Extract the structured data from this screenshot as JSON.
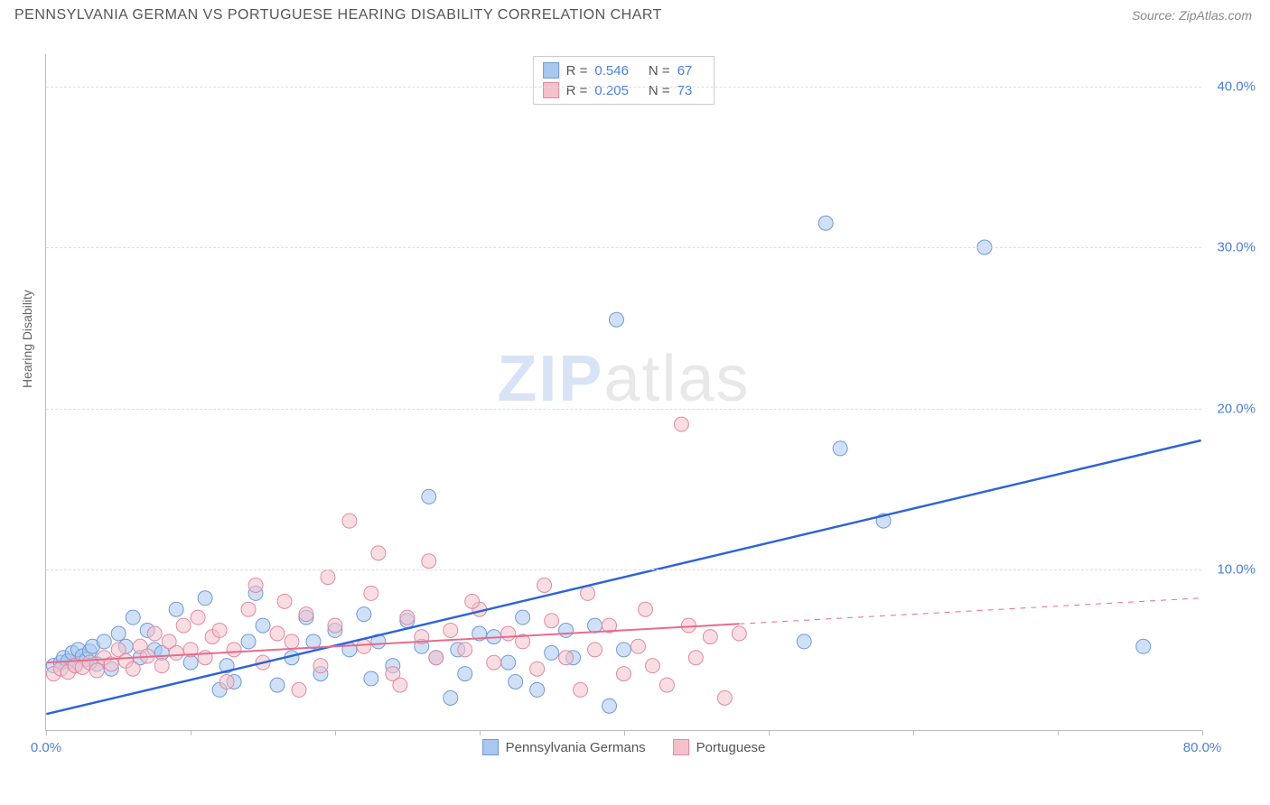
{
  "title": "PENNSYLVANIA GERMAN VS PORTUGUESE HEARING DISABILITY CORRELATION CHART",
  "source_label": "Source: ZipAtlas.com",
  "ylabel": "Hearing Disability",
  "watermark": {
    "zip": "ZIP",
    "atlas": "atlas"
  },
  "chart": {
    "type": "scatter",
    "xlim": [
      0,
      80
    ],
    "ylim": [
      0,
      42
    ],
    "x_tick_step": 10,
    "x_tick_labels": {
      "0": "0.0%",
      "80": "80.0%"
    },
    "y_ticks": [
      10,
      20,
      30,
      40
    ],
    "y_tick_labels": [
      "10.0%",
      "20.0%",
      "30.0%",
      "40.0%"
    ],
    "grid_color": "#dddddd",
    "axis_color": "#bbbbbb",
    "background_color": "#ffffff",
    "marker_radius": 8,
    "marker_opacity": 0.55,
    "series": [
      {
        "name": "Pennsylvania Germans",
        "color_fill": "#a9c7ef",
        "color_stroke": "#6f9ad8",
        "r_value": "0.546",
        "n_value": "67",
        "trend": {
          "x1": 0,
          "y1": 1.0,
          "x2": 80,
          "y2": 18.0,
          "solid_until_x": 80,
          "stroke": "#2e63d6",
          "width": 2.5
        },
        "points": [
          [
            0.5,
            4.0
          ],
          [
            1.0,
            4.2
          ],
          [
            1.2,
            4.5
          ],
          [
            1.5,
            4.3
          ],
          [
            1.8,
            4.8
          ],
          [
            2.0,
            4.0
          ],
          [
            2.2,
            5.0
          ],
          [
            2.5,
            4.6
          ],
          [
            2.8,
            4.4
          ],
          [
            3.0,
            4.9
          ],
          [
            3.2,
            5.2
          ],
          [
            3.5,
            4.1
          ],
          [
            4.0,
            5.5
          ],
          [
            4.5,
            3.8
          ],
          [
            5.0,
            6.0
          ],
          [
            5.5,
            5.2
          ],
          [
            6.0,
            7.0
          ],
          [
            6.5,
            4.5
          ],
          [
            7.0,
            6.2
          ],
          [
            7.5,
            5.0
          ],
          [
            8.0,
            4.8
          ],
          [
            9.0,
            7.5
          ],
          [
            10.0,
            4.2
          ],
          [
            11.0,
            8.2
          ],
          [
            12.0,
            2.5
          ],
          [
            13.0,
            3.0
          ],
          [
            14.0,
            5.5
          ],
          [
            15.0,
            6.5
          ],
          [
            16.0,
            2.8
          ],
          [
            17.0,
            4.5
          ],
          [
            18.0,
            7.0
          ],
          [
            19.0,
            3.5
          ],
          [
            20.0,
            6.2
          ],
          [
            21.0,
            5.0
          ],
          [
            22.0,
            7.2
          ],
          [
            23.0,
            5.5
          ],
          [
            24.0,
            4.0
          ],
          [
            25.0,
            6.8
          ],
          [
            26.0,
            5.2
          ],
          [
            27.0,
            4.5
          ],
          [
            28.0,
            2.0
          ],
          [
            29.0,
            3.5
          ],
          [
            30.0,
            6.0
          ],
          [
            31.0,
            5.8
          ],
          [
            32.0,
            4.2
          ],
          [
            33.0,
            7.0
          ],
          [
            34.0,
            2.5
          ],
          [
            35.0,
            4.8
          ],
          [
            36.0,
            6.2
          ],
          [
            38.0,
            6.5
          ],
          [
            39.0,
            1.5
          ],
          [
            40.0,
            5.0
          ],
          [
            26.5,
            14.5
          ],
          [
            39.5,
            25.5
          ],
          [
            54.0,
            31.5
          ],
          [
            55.0,
            17.5
          ],
          [
            58.0,
            13.0
          ],
          [
            65.0,
            30.0
          ],
          [
            76.0,
            5.2
          ],
          [
            12.5,
            4.0
          ],
          [
            14.5,
            8.5
          ],
          [
            18.5,
            5.5
          ],
          [
            22.5,
            3.2
          ],
          [
            28.5,
            5.0
          ],
          [
            32.5,
            3.0
          ],
          [
            36.5,
            4.5
          ],
          [
            52.5,
            5.5
          ]
        ]
      },
      {
        "name": "Portuguese",
        "color_fill": "#f3c1cc",
        "color_stroke": "#e08aa0",
        "r_value": "0.205",
        "n_value": "73",
        "trend": {
          "x1": 0,
          "y1": 4.2,
          "x2": 80,
          "y2": 8.2,
          "solid_until_x": 48,
          "stroke": "#e86b8a",
          "width": 2
        },
        "points": [
          [
            0.5,
            3.5
          ],
          [
            1.0,
            3.8
          ],
          [
            1.5,
            3.6
          ],
          [
            2.0,
            4.0
          ],
          [
            2.5,
            3.9
          ],
          [
            3.0,
            4.2
          ],
          [
            3.5,
            3.7
          ],
          [
            4.0,
            4.5
          ],
          [
            4.5,
            4.1
          ],
          [
            5.0,
            5.0
          ],
          [
            5.5,
            4.3
          ],
          [
            6.0,
            3.8
          ],
          [
            6.5,
            5.2
          ],
          [
            7.0,
            4.6
          ],
          [
            7.5,
            6.0
          ],
          [
            8.0,
            4.0
          ],
          [
            8.5,
            5.5
          ],
          [
            9.0,
            4.8
          ],
          [
            9.5,
            6.5
          ],
          [
            10.0,
            5.0
          ],
          [
            10.5,
            7.0
          ],
          [
            11.0,
            4.5
          ],
          [
            11.5,
            5.8
          ],
          [
            12.0,
            6.2
          ],
          [
            13.0,
            5.0
          ],
          [
            14.0,
            7.5
          ],
          [
            15.0,
            4.2
          ],
          [
            16.0,
            6.0
          ],
          [
            17.0,
            5.5
          ],
          [
            18.0,
            7.2
          ],
          [
            19.0,
            4.0
          ],
          [
            20.0,
            6.5
          ],
          [
            21.0,
            13.0
          ],
          [
            22.0,
            5.2
          ],
          [
            23.0,
            11.0
          ],
          [
            24.0,
            3.5
          ],
          [
            25.0,
            7.0
          ],
          [
            26.0,
            5.8
          ],
          [
            27.0,
            4.5
          ],
          [
            28.0,
            6.2
          ],
          [
            29.0,
            5.0
          ],
          [
            30.0,
            7.5
          ],
          [
            31.0,
            4.2
          ],
          [
            32.0,
            6.0
          ],
          [
            33.0,
            5.5
          ],
          [
            34.0,
            3.8
          ],
          [
            35.0,
            6.8
          ],
          [
            36.0,
            4.5
          ],
          [
            37.0,
            2.5
          ],
          [
            38.0,
            5.0
          ],
          [
            39.0,
            6.5
          ],
          [
            40.0,
            3.5
          ],
          [
            41.0,
            5.2
          ],
          [
            42.0,
            4.0
          ],
          [
            43.0,
            2.8
          ],
          [
            44.0,
            19.0
          ],
          [
            45.0,
            4.5
          ],
          [
            46.0,
            5.8
          ],
          [
            47.0,
            2.0
          ],
          [
            48.0,
            6.0
          ],
          [
            14.5,
            9.0
          ],
          [
            16.5,
            8.0
          ],
          [
            19.5,
            9.5
          ],
          [
            22.5,
            8.5
          ],
          [
            26.5,
            10.5
          ],
          [
            29.5,
            8.0
          ],
          [
            34.5,
            9.0
          ],
          [
            37.5,
            8.5
          ],
          [
            41.5,
            7.5
          ],
          [
            44.5,
            6.5
          ],
          [
            12.5,
            3.0
          ],
          [
            17.5,
            2.5
          ],
          [
            24.5,
            2.8
          ]
        ]
      }
    ]
  },
  "legend_bottom": [
    {
      "label": "Pennsylvania Germans",
      "fill": "#a9c7ef",
      "stroke": "#6f9ad8"
    },
    {
      "label": "Portuguese",
      "fill": "#f3c1cc",
      "stroke": "#e08aa0"
    }
  ]
}
